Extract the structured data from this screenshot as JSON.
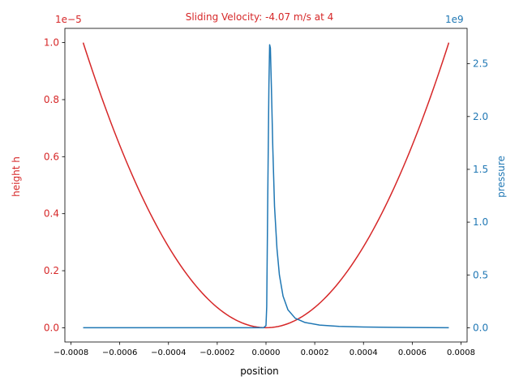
{
  "chart_data": {
    "type": "line",
    "title": "Sliding Velocity: -4.07 m/s at 4",
    "xlabel": "position",
    "xlim": [
      -0.000825,
      0.000825
    ],
    "x_ticks": [
      -0.0008,
      -0.0006,
      -0.0004,
      -0.0002,
      0.0,
      0.0002,
      0.0004,
      0.0006,
      0.0008
    ],
    "x_tick_labels": [
      "−0.0008",
      "−0.0006",
      "−0.0004",
      "−0.0002",
      "0.0000",
      "0.0002",
      "0.0004",
      "0.0006",
      "0.0008"
    ],
    "left_axis": {
      "label": "height h",
      "color": "#d62728",
      "offset_text": "1e−5",
      "ylim": [
        -0.05,
        1.05
      ],
      "ticks": [
        0.0,
        0.2,
        0.4,
        0.6,
        0.8,
        1.0
      ],
      "tick_labels": [
        "0.0",
        "0.2",
        "0.4",
        "0.6",
        "0.8",
        "1.0"
      ]
    },
    "right_axis": {
      "label": "pressure",
      "color": "#1f77b4",
      "offset_text": "1e9",
      "ylim": [
        -0.135,
        2.835
      ],
      "ticks": [
        0.0,
        0.5,
        1.0,
        1.5,
        2.0,
        2.5
      ],
      "tick_labels": [
        "0.0",
        "0.5",
        "1.0",
        "1.5",
        "2.0",
        "2.5"
      ]
    },
    "series": [
      {
        "axis": "left",
        "color": "#d62728",
        "x": [
          -0.00075,
          -0.0006,
          -0.0004,
          -0.0002,
          -0.0001,
          0.0,
          0.0001,
          0.0002,
          0.0004,
          0.0006,
          0.00075
        ],
        "y": [
          1.0,
          0.64,
          0.284,
          0.071,
          0.018,
          0.0,
          0.018,
          0.071,
          0.284,
          0.64,
          1.0
        ]
      },
      {
        "axis": "right",
        "color": "#1f77b4",
        "x": [
          -0.00075,
          -0.0004,
          -0.0001,
          -1e-05,
          0.0,
          3e-06,
          8e-06,
          1.2e-05,
          1.5e-05,
          1.8e-05,
          2.2e-05,
          2.8e-05,
          3.5e-05,
          4.5e-05,
          5.5e-05,
          7e-05,
          9e-05,
          0.00012,
          0.00016,
          0.00022,
          0.0003,
          0.0004,
          0.0005,
          0.0006,
          0.00075
        ],
        "y": [
          0.0,
          0.0,
          0.0,
          0.0,
          0.02,
          0.2,
          1.4,
          2.3,
          2.68,
          2.65,
          2.3,
          1.7,
          1.15,
          0.75,
          0.5,
          0.3,
          0.17,
          0.09,
          0.05,
          0.025,
          0.013,
          0.007,
          0.004,
          0.002,
          0.0
        ]
      }
    ]
  }
}
